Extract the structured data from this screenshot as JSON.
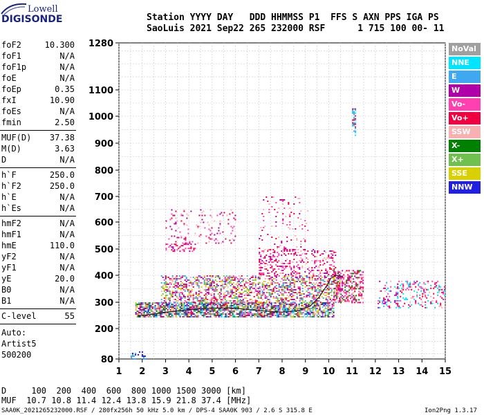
{
  "logo": {
    "line1": "Lowell",
    "line2": "DIGISONDE"
  },
  "header": {
    "row1": "Station YYYY DAY   DDD HHMMSS P1  FFS S AXN PPS IGA PS",
    "row2": "SaoLuis 2021 Sep22 265 232000 RSF      1 715 100 00- 11"
  },
  "params_group1": [
    {
      "name": "foF2",
      "value": "10.300"
    },
    {
      "name": "foF1",
      "value": "N/A"
    },
    {
      "name": "foF1p",
      "value": "N/A"
    },
    {
      "name": "foE",
      "value": "N/A"
    },
    {
      "name": "foEp",
      "value": "0.35"
    },
    {
      "name": "fxI",
      "value": "10.90"
    },
    {
      "name": "foEs",
      "value": "N/A"
    },
    {
      "name": "fmin",
      "value": "2.50"
    }
  ],
  "params_group2": [
    {
      "name": "MUF(D)",
      "value": "37.38"
    },
    {
      "name": "M(D)",
      "value": "3.63"
    },
    {
      "name": "D",
      "value": "N/A"
    }
  ],
  "params_group3": [
    {
      "name": "h`F",
      "value": "250.0"
    },
    {
      "name": "h`F2",
      "value": "250.0"
    },
    {
      "name": "h`E",
      "value": "N/A"
    },
    {
      "name": "h`Es",
      "value": "N/A"
    }
  ],
  "params_group4": [
    {
      "name": "hmF2",
      "value": "N/A"
    },
    {
      "name": "hmF1",
      "value": "N/A"
    },
    {
      "name": "hmE",
      "value": "110.0"
    },
    {
      "name": "yF2",
      "value": "N/A"
    },
    {
      "name": "yF1",
      "value": "N/A"
    },
    {
      "name": "yE",
      "value": "20.0"
    },
    {
      "name": "B0",
      "value": "N/A"
    },
    {
      "name": "B1",
      "value": "N/A"
    }
  ],
  "clevel": {
    "name": "C-level",
    "value": "55"
  },
  "auto": {
    "line1": "Auto:",
    "line2": "Artist5",
    "line3": "500200"
  },
  "footer": {
    "d_row": "D     100  200  400  600  800 1000 1500 3000 [km]",
    "muf_row": "MUF  10.7 10.8 11.4 12.4 13.8 15.9 21.8 37.4 [MHz]",
    "file_info": "SAA0K_2021265232000.RSF / 280fx256h 50 kHz 5.0 km / DPS-4 SAA0K 903 / 2.6 S 315.8 E",
    "version": "Ion2Png 1.3.17"
  },
  "legend": [
    {
      "label": "NoVal",
      "color": "#a0a0a0"
    },
    {
      "label": "NNE",
      "color": "#00e5ff"
    },
    {
      "label": "E",
      "color": "#40a8f0"
    },
    {
      "label": "W",
      "color": "#b000a8"
    },
    {
      "label": "Vo-",
      "color": "#ff40b0"
    },
    {
      "label": "Vo+",
      "color": "#f00040"
    },
    {
      "label": "SSW",
      "color": "#f8b0b0"
    },
    {
      "label": "X-",
      "color": "#008000"
    },
    {
      "label": "X+",
      "color": "#70c050"
    },
    {
      "label": "SSE",
      "color": "#d8d000"
    },
    {
      "label": "NNW",
      "color": "#2020e0"
    }
  ],
  "chart_data": {
    "type": "scatter",
    "xlim": [
      1,
      15
    ],
    "ylim": [
      80,
      1280
    ],
    "x_ticks": [
      "1",
      "2",
      "3",
      "4",
      "5",
      "6",
      "7",
      "8",
      "9",
      "10",
      "11",
      "12",
      "13",
      "14",
      "15"
    ],
    "y_ticks": [
      "80",
      "200",
      "300",
      "400",
      "500",
      "600",
      "700",
      "800",
      "900",
      "1000",
      "1100",
      "1280"
    ],
    "y_tick_values": [
      80,
      200,
      300,
      400,
      500,
      600,
      700,
      800,
      900,
      1000,
      1100,
      1280
    ],
    "grid": true,
    "legend_position": "right",
    "y_scale": "nonlinear",
    "trace_curve": {
      "x": [
        1.8,
        2.5,
        3.0,
        4.0,
        5.0,
        6.0,
        7.0,
        8.0,
        8.7,
        9.2,
        9.6,
        9.9,
        10.1,
        10.3,
        10.6
      ],
      "y": [
        248,
        255,
        262,
        272,
        278,
        278,
        268,
        262,
        268,
        285,
        320,
        360,
        390,
        400,
        395
      ]
    },
    "echo_regions": [
      {
        "x0": 1.7,
        "x1": 10.2,
        "y0": 245,
        "y1": 300,
        "density": 0.75,
        "colors": [
          "Vo+",
          "Vo-",
          "W",
          "SSE",
          "X-",
          "NNW",
          "E",
          "NNE",
          "SSW",
          "X+"
        ]
      },
      {
        "x0": 2.8,
        "x1": 10.5,
        "y0": 300,
        "y1": 400,
        "density": 0.45,
        "colors": [
          "Vo+",
          "Vo-",
          "W",
          "SSE",
          "X+",
          "SSW",
          "E"
        ]
      },
      {
        "x0": 7.0,
        "x1": 10.3,
        "y0": 400,
        "y1": 500,
        "density": 0.28,
        "colors": [
          "Vo+",
          "Vo-",
          "W",
          "SSW"
        ]
      },
      {
        "x0": 3.0,
        "x1": 4.3,
        "y0": 490,
        "y1": 520,
        "density": 0.4,
        "colors": [
          "W",
          "Vo-",
          "Vo+"
        ]
      },
      {
        "x0": 3.0,
        "x1": 6.0,
        "y0": 520,
        "y1": 650,
        "density": 0.08,
        "colors": [
          "W",
          "Vo-",
          "SSW",
          "Vo+"
        ]
      },
      {
        "x0": 7.0,
        "x1": 9.1,
        "y0": 500,
        "y1": 700,
        "density": 0.08,
        "colors": [
          "W",
          "Vo-",
          "SSW",
          "Vo+"
        ]
      },
      {
        "x0": 10.2,
        "x1": 11.5,
        "y0": 300,
        "y1": 420,
        "density": 0.5,
        "colors": [
          "Vo+",
          "Vo-",
          "W",
          "SSW",
          "X-"
        ]
      },
      {
        "x0": 12.1,
        "x1": 15.0,
        "y0": 280,
        "y1": 380,
        "density": 0.25,
        "colors": [
          "NNE",
          "E",
          "Vo-",
          "W",
          "SSW",
          "Vo+"
        ]
      },
      {
        "x0": 1.5,
        "x1": 2.1,
        "y0": 82,
        "y1": 110,
        "density": 0.3,
        "colors": [
          "NNW",
          "E"
        ]
      },
      {
        "x0": 11.0,
        "x1": 11.15,
        "y0": 930,
        "y1": 1030,
        "density": 0.5,
        "colors": [
          "Vo+",
          "NNE",
          "E"
        ]
      }
    ]
  }
}
